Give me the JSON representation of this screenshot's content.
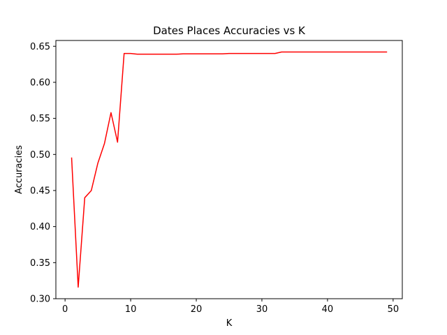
{
  "chart_data": {
    "type": "line",
    "title": "Dates Places Accuracies vs K",
    "xlabel": "K",
    "ylabel": "Accuracies",
    "xlim": [
      -1.4,
      51.4
    ],
    "ylim": [
      0.3,
      0.658
    ],
    "xticks": [
      0,
      10,
      20,
      30,
      40,
      50
    ],
    "xtick_labels": [
      "0",
      "10",
      "20",
      "30",
      "40",
      "50"
    ],
    "yticks": [
      0.3,
      0.35,
      0.4,
      0.45,
      0.5,
      0.55,
      0.6,
      0.65
    ],
    "ytick_labels": [
      "0.30",
      "0.35",
      "0.40",
      "0.45",
      "0.50",
      "0.55",
      "0.60",
      "0.65"
    ],
    "grid": false,
    "series": [
      {
        "color": "#ff0000",
        "x": [
          1,
          2,
          3,
          4,
          5,
          6,
          7,
          8,
          9,
          10,
          11,
          12,
          13,
          14,
          15,
          16,
          17,
          18,
          19,
          20,
          21,
          22,
          23,
          24,
          25,
          26,
          27,
          28,
          29,
          30,
          31,
          32,
          33,
          34,
          35,
          36,
          37,
          38,
          39,
          40,
          41,
          42,
          43,
          44,
          45,
          46,
          47,
          48,
          49
        ],
        "y": [
          0.495,
          0.316,
          0.44,
          0.45,
          0.488,
          0.515,
          0.558,
          0.517,
          0.64,
          0.64,
          0.639,
          0.639,
          0.639,
          0.639,
          0.639,
          0.639,
          0.639,
          0.6395,
          0.6395,
          0.6395,
          0.6395,
          0.6395,
          0.6395,
          0.6395,
          0.64,
          0.64,
          0.64,
          0.64,
          0.64,
          0.64,
          0.64,
          0.64,
          0.642,
          0.642,
          0.642,
          0.642,
          0.642,
          0.642,
          0.642,
          0.642,
          0.642,
          0.642,
          0.642,
          0.642,
          0.642,
          0.642,
          0.642,
          0.642,
          0.642
        ]
      }
    ]
  }
}
